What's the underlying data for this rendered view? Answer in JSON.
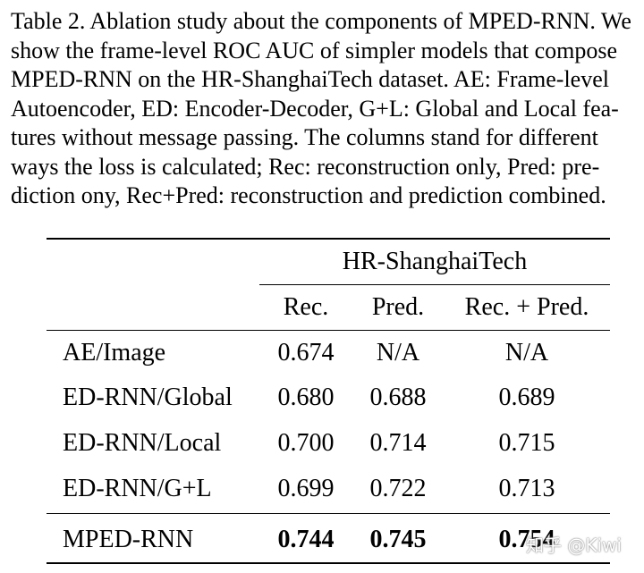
{
  "caption_lines": [
    "Table 2. Ablation study about the components of MPED-RNN. We",
    "show the frame-level ROC AUC of simpler models that compose",
    "MPED-RNN on the HR-ShanghaiTech dataset.  AE: Frame-level",
    "Autoencoder, ED: Encoder-Decoder, G+L: Global and Local fea-",
    "tures without message passing.  The columns stand for different",
    "ways the loss is calculated; Rec: reconstruction only, Pred: pre-",
    "diction ony, Rec+Pred: reconstruction and prediction combined."
  ],
  "table": {
    "dataset_header": "HR-ShanghaiTech",
    "columns": [
      "Rec.",
      "Pred.",
      "Rec. + Pred."
    ],
    "rows": [
      {
        "model": "AE/Image",
        "values": [
          "0.674",
          "N/A",
          "N/A"
        ]
      },
      {
        "model": "ED-RNN/Global",
        "values": [
          "0.680",
          "0.688",
          "0.689"
        ]
      },
      {
        "model": "ED-RNN/Local",
        "values": [
          "0.700",
          "0.714",
          "0.715"
        ]
      },
      {
        "model": "ED-RNN/G+L",
        "values": [
          "0.699",
          "0.722",
          "0.713"
        ]
      },
      {
        "model": "MPED-RNN",
        "values": [
          "0.744",
          "0.745",
          "0.754"
        ]
      }
    ]
  },
  "watermark": "知乎 @Kiwi"
}
